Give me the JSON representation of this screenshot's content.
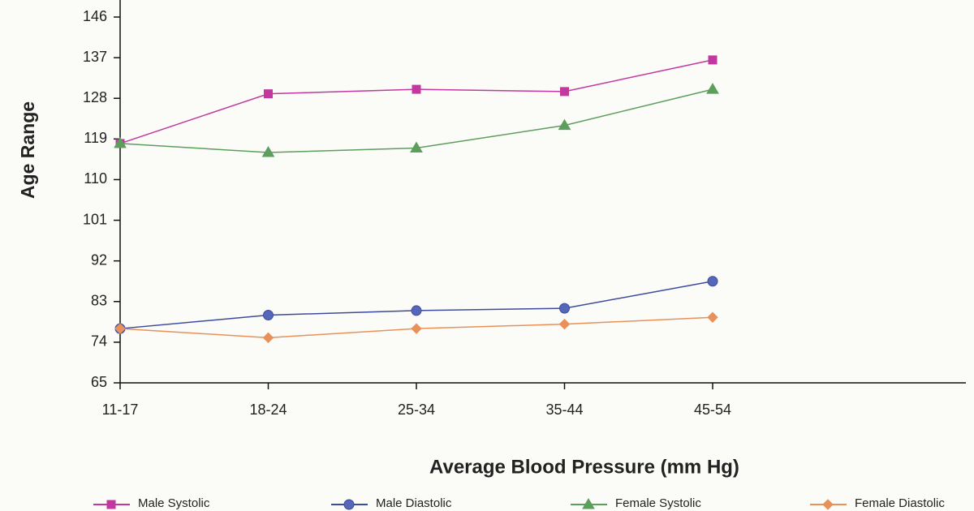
{
  "chart_data": {
    "type": "line",
    "x_label": "Average Blood Pressure (mm Hg)",
    "y_label": "Age Range",
    "categories": [
      "11-17",
      "18-24",
      "25-34",
      "35-44",
      "45-54"
    ],
    "series": [
      {
        "name": "Male Systolic",
        "color": "#c2389f",
        "marker": "square",
        "values": [
          118,
          129,
          130,
          129.5,
          136.5
        ]
      },
      {
        "name": "Male Diastolic",
        "color": "#3d4b9c",
        "marker": "circle",
        "values": [
          77,
          80,
          81,
          81.5,
          87.5
        ]
      },
      {
        "name": "Female Systolic",
        "color": "#5c9e5c",
        "marker": "triangle",
        "values": [
          118,
          116,
          117,
          122,
          130
        ]
      },
      {
        "name": "Female Diastolic",
        "color": "#e8915a",
        "marker": "diamond",
        "values": [
          77,
          75,
          77,
          78,
          79.5
        ]
      }
    ],
    "ylim": [
      65,
      146
    ],
    "yticks": [
      65,
      74,
      83,
      92,
      101,
      110,
      119,
      128,
      137,
      146
    ]
  }
}
